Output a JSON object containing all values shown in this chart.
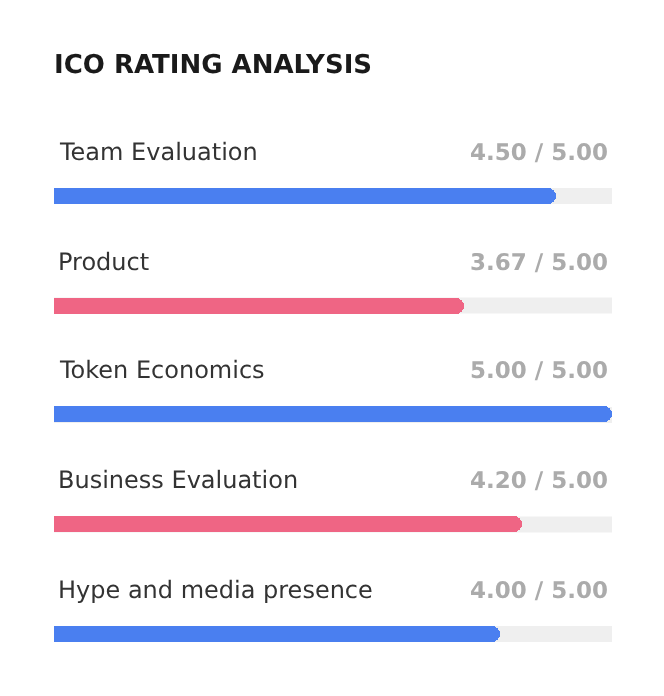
{
  "chart_data": {
    "type": "bar",
    "orientation": "horizontal",
    "title": "ICO RATING ANALYSIS",
    "categories": [
      "Team Evaluation",
      "Product",
      "Token Economics",
      "Business Evaluation",
      "Hype and media presence"
    ],
    "values": [
      4.5,
      3.67,
      5.0,
      4.2,
      4.0
    ],
    "colors": [
      "#4a7ff0",
      "#ef6584",
      "#4a7ff0",
      "#ef6584",
      "#4a7ff0"
    ],
    "value_labels": [
      "4.50 / 5.00",
      "3.67 / 5.00",
      "5.00 / 5.00",
      "4.20 / 5.00",
      "4.00 / 5.00"
    ],
    "xlim": [
      0,
      5
    ]
  }
}
